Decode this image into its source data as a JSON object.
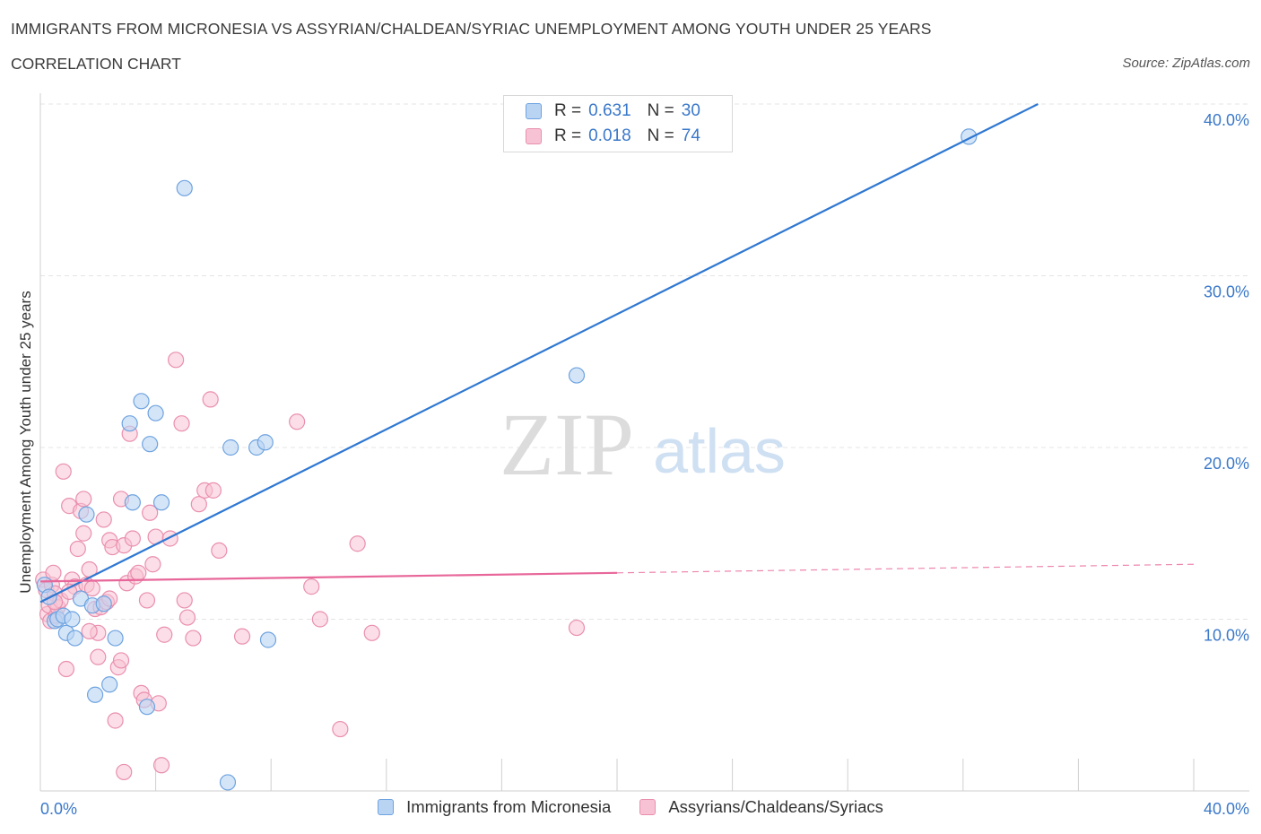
{
  "header": {
    "title": "IMMIGRANTS FROM MICRONESIA VS ASSYRIAN/CHALDEAN/SYRIAC UNEMPLOYMENT AMONG YOUTH UNDER 25 YEARS",
    "subtitle": "CORRELATION CHART",
    "source": "Source: ZipAtlas.com"
  },
  "watermark": {
    "zip": "ZIP",
    "atlas": "atlas"
  },
  "legend": {
    "rows": [
      {
        "r_label": "R =",
        "r_value": "0.631",
        "n_label": "N =",
        "n_value": "30"
      },
      {
        "r_label": "R =",
        "r_value": "0.018",
        "n_label": "N =",
        "n_value": "74"
      }
    ]
  },
  "colors": {
    "blue_fill": "#b9d3f3",
    "blue_stroke": "#6ea3e0",
    "blue_line": "#2f78d2",
    "pink_fill": "#f7c3d4",
    "pink_stroke": "#ea8fae",
    "pink_line": "#e8679a",
    "axis_text": "#3a78c9",
    "grid": "#e4e4e4"
  },
  "chart_data": {
    "type": "scatter",
    "title": "IMMIGRANTS FROM MICRONESIA VS ASSYRIAN/CHALDEAN/SYRIAC UNEMPLOYMENT AMONG YOUTH UNDER 25 YEARS",
    "xlabel": "",
    "ylabel": "Unemployment Among Youth under 25 years",
    "xlim": [
      0,
      40
    ],
    "ylim": [
      0,
      40
    ],
    "x_tick_labels": [
      "0.0%",
      "40.0%"
    ],
    "y_ticks": [
      10,
      20,
      30,
      40
    ],
    "y_tick_labels": [
      "10.0%",
      "20.0%",
      "30.0%",
      "40.0%"
    ],
    "grid": true,
    "legend_position": "top-center",
    "series": [
      {
        "name": "Immigrants from Micronesia",
        "R": 0.631,
        "N": 30,
        "trend": {
          "x": [
            0,
            34.6
          ],
          "y": [
            11.0,
            40.0
          ]
        },
        "points": [
          [
            0.15,
            12.0
          ],
          [
            0.3,
            11.3
          ],
          [
            0.5,
            9.9
          ],
          [
            0.6,
            10.0
          ],
          [
            0.8,
            10.2
          ],
          [
            0.9,
            9.2
          ],
          [
            1.1,
            10.0
          ],
          [
            1.2,
            8.9
          ],
          [
            1.4,
            11.2
          ],
          [
            1.6,
            16.1
          ],
          [
            1.8,
            10.8
          ],
          [
            2.2,
            10.9
          ],
          [
            2.4,
            6.2
          ],
          [
            1.9,
            5.6
          ],
          [
            2.6,
            8.9
          ],
          [
            3.1,
            21.4
          ],
          [
            3.5,
            22.7
          ],
          [
            3.8,
            20.2
          ],
          [
            4.0,
            22.0
          ],
          [
            3.2,
            16.8
          ],
          [
            4.2,
            16.8
          ],
          [
            3.7,
            4.9
          ],
          [
            5.0,
            35.1
          ],
          [
            6.5,
            0.5
          ],
          [
            6.6,
            20.0
          ],
          [
            7.5,
            20.0
          ],
          [
            7.8,
            20.3
          ],
          [
            7.9,
            8.8
          ],
          [
            18.6,
            24.2
          ],
          [
            32.2,
            38.1
          ]
        ]
      },
      {
        "name": "Assyrians/Chaldeans/Syriacs",
        "R": 0.018,
        "N": 74,
        "trend": {
          "x": [
            0,
            20
          ],
          "y": [
            12.2,
            12.7
          ]
        },
        "trend_dashed": {
          "x": [
            20,
            40
          ],
          "y": [
            12.7,
            13.2
          ]
        },
        "points": [
          [
            0.1,
            12.3
          ],
          [
            0.2,
            11.7
          ],
          [
            0.25,
            10.3
          ],
          [
            0.3,
            10.8
          ],
          [
            0.35,
            9.9
          ],
          [
            0.4,
            12.0
          ],
          [
            0.45,
            12.7
          ],
          [
            0.5,
            11.5
          ],
          [
            0.55,
            10.2
          ],
          [
            0.6,
            10.7
          ],
          [
            0.7,
            11.1
          ],
          [
            0.8,
            18.6
          ],
          [
            0.9,
            7.1
          ],
          [
            1.0,
            16.6
          ],
          [
            1.1,
            12.3
          ],
          [
            1.2,
            11.9
          ],
          [
            1.3,
            14.1
          ],
          [
            1.4,
            16.3
          ],
          [
            1.5,
            17.0
          ],
          [
            1.6,
            12.0
          ],
          [
            1.7,
            12.9
          ],
          [
            1.8,
            11.8
          ],
          [
            1.9,
            10.6
          ],
          [
            2.0,
            9.2
          ],
          [
            2.1,
            10.7
          ],
          [
            2.2,
            15.8
          ],
          [
            2.3,
            11.0
          ],
          [
            2.4,
            14.6
          ],
          [
            2.5,
            14.2
          ],
          [
            2.6,
            4.1
          ],
          [
            2.7,
            7.2
          ],
          [
            2.8,
            17.0
          ],
          [
            2.9,
            14.3
          ],
          [
            3.0,
            12.1
          ],
          [
            3.1,
            20.8
          ],
          [
            3.2,
            14.7
          ],
          [
            3.3,
            12.5
          ],
          [
            3.4,
            12.7
          ],
          [
            3.5,
            5.7
          ],
          [
            3.6,
            5.3
          ],
          [
            3.7,
            11.1
          ],
          [
            3.8,
            16.2
          ],
          [
            3.9,
            13.2
          ],
          [
            4.0,
            14.8
          ],
          [
            4.1,
            5.1
          ],
          [
            4.2,
            1.5
          ],
          [
            4.3,
            9.1
          ],
          [
            4.5,
            14.7
          ],
          [
            4.7,
            25.1
          ],
          [
            4.9,
            21.4
          ],
          [
            5.0,
            11.1
          ],
          [
            5.1,
            10.1
          ],
          [
            5.3,
            8.9
          ],
          [
            5.5,
            16.7
          ],
          [
            5.7,
            17.5
          ],
          [
            5.9,
            22.8
          ],
          [
            6.0,
            17.5
          ],
          [
            6.2,
            14.0
          ],
          [
            2.9,
            1.1
          ],
          [
            7.0,
            9.0
          ],
          [
            8.9,
            21.5
          ],
          [
            9.4,
            11.9
          ],
          [
            9.7,
            10.0
          ],
          [
            10.4,
            3.6
          ],
          [
            11.0,
            14.4
          ],
          [
            11.5,
            9.2
          ],
          [
            18.6,
            9.5
          ],
          [
            1.0,
            11.6
          ],
          [
            1.5,
            15.0
          ],
          [
            2.0,
            7.8
          ],
          [
            2.8,
            7.6
          ],
          [
            0.5,
            11.0
          ],
          [
            1.7,
            9.3
          ],
          [
            2.4,
            11.2
          ]
        ]
      }
    ]
  }
}
